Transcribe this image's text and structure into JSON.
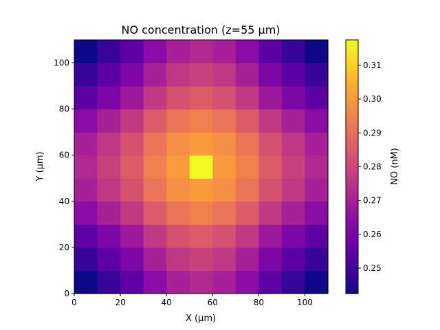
{
  "chart_data": {
    "type": "heatmap",
    "title": "NO concentration (z=55 µm)",
    "xlabel": "X (µm)",
    "ylabel": "Y (µm)",
    "colorbar_label": "NO (nM)",
    "colormap": "plasma",
    "xlim": [
      0,
      110
    ],
    "ylim": [
      0,
      110
    ],
    "x_edges": [
      0,
      10,
      20,
      30,
      40,
      50,
      60,
      70,
      80,
      90,
      100,
      110
    ],
    "y_edges": [
      0,
      10,
      20,
      30,
      40,
      50,
      60,
      70,
      80,
      90,
      100,
      110
    ],
    "x_ticks": [
      0,
      20,
      40,
      60,
      80,
      100
    ],
    "x_tick_labels": [
      "0",
      "20",
      "40",
      "60",
      "80",
      "100"
    ],
    "y_ticks": [
      0,
      20,
      40,
      60,
      80,
      100
    ],
    "y_tick_labels": [
      "0",
      "20",
      "40",
      "60",
      "80",
      "100"
    ],
    "vmin": 0.2425,
    "vmax": 0.3175,
    "colorbar_ticks": [
      0.25,
      0.26,
      0.27,
      0.28,
      0.29,
      0.3,
      0.31
    ],
    "colorbar_tick_labels": [
      "0.25",
      "0.26",
      "0.27",
      "0.28",
      "0.29",
      "0.30",
      "0.31"
    ],
    "values_rows_bottom_to_top": [
      [
        0.2425,
        0.2487,
        0.2552,
        0.264,
        0.27,
        0.2725,
        0.27,
        0.264,
        0.2552,
        0.2487,
        0.2425
      ],
      [
        0.2487,
        0.2549,
        0.2614,
        0.2702,
        0.2762,
        0.2787,
        0.2762,
        0.2702,
        0.2614,
        0.2549,
        0.2487
      ],
      [
        0.2552,
        0.2614,
        0.2679,
        0.2767,
        0.2827,
        0.2852,
        0.2827,
        0.2767,
        0.2679,
        0.2614,
        0.2552
      ],
      [
        0.264,
        0.2702,
        0.2767,
        0.2855,
        0.2915,
        0.294,
        0.2915,
        0.2855,
        0.2767,
        0.2702,
        0.264
      ],
      [
        0.27,
        0.2762,
        0.2827,
        0.2915,
        0.2975,
        0.3,
        0.2975,
        0.2915,
        0.2827,
        0.2762,
        0.27
      ],
      [
        0.2725,
        0.2787,
        0.2852,
        0.294,
        0.3,
        0.3175,
        0.3,
        0.294,
        0.2852,
        0.2787,
        0.2725
      ],
      [
        0.27,
        0.2762,
        0.2827,
        0.2915,
        0.2975,
        0.3,
        0.2975,
        0.2915,
        0.2827,
        0.2762,
        0.27
      ],
      [
        0.264,
        0.2702,
        0.2767,
        0.2855,
        0.2915,
        0.294,
        0.2915,
        0.2855,
        0.2767,
        0.2702,
        0.264
      ],
      [
        0.2552,
        0.2614,
        0.2679,
        0.2767,
        0.2827,
        0.2852,
        0.2827,
        0.2767,
        0.2679,
        0.2614,
        0.2552
      ],
      [
        0.2487,
        0.2549,
        0.2614,
        0.2702,
        0.2762,
        0.2787,
        0.2762,
        0.2702,
        0.2614,
        0.2549,
        0.2487
      ],
      [
        0.2425,
        0.2487,
        0.2552,
        0.264,
        0.27,
        0.2725,
        0.27,
        0.264,
        0.2552,
        0.2487,
        0.2425
      ]
    ]
  }
}
